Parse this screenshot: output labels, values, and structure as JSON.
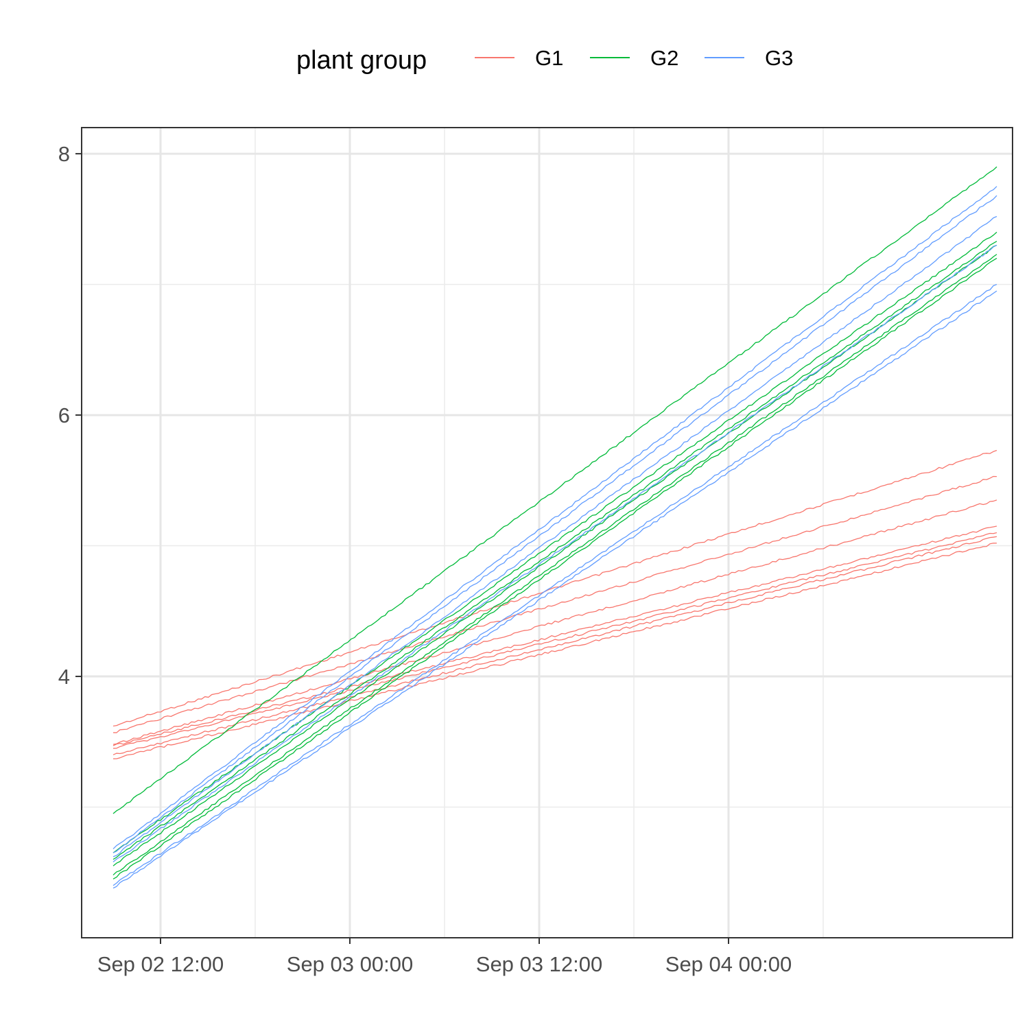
{
  "chart_data": {
    "type": "line",
    "title": "",
    "xlabel": "",
    "ylabel": "",
    "x_type": "datetime",
    "xlim": [
      "2022-09-02 07:00",
      "2022-09-04 18:00"
    ],
    "ylim": [
      2.0,
      8.2
    ],
    "x_ticks": [
      {
        "value": "2022-09-02 12:00",
        "label": "Sep 02 12:00"
      },
      {
        "value": "2022-09-03 00:00",
        "label": "Sep 03 00:00"
      },
      {
        "value": "2022-09-03 12:00",
        "label": "Sep 03 12:00"
      },
      {
        "value": "2022-09-04 00:00",
        "label": "Sep 04 00:00"
      }
    ],
    "x_minor_ticks": [
      "2022-09-02 18:00",
      "2022-09-03 06:00",
      "2022-09-03 18:00",
      "2022-09-04 06:00"
    ],
    "y_ticks": [
      {
        "value": 4,
        "label": "4"
      },
      {
        "value": 6,
        "label": "6"
      },
      {
        "value": 8,
        "label": "8"
      }
    ],
    "y_minor_ticks": [
      3,
      5,
      7
    ],
    "grid": true,
    "legend": {
      "title": "plant group",
      "position": "top",
      "entries": [
        {
          "label": "G1",
          "color": "#F8766D"
        },
        {
          "label": "G2",
          "color": "#00BA38"
        },
        {
          "label": "G3",
          "color": "#619CFF"
        }
      ]
    },
    "series": [
      {
        "group": "G1",
        "color": "#F8766D",
        "x": [
          "2022-09-02 09:00",
          "2022-09-04 17:00"
        ],
        "y": [
          3.62,
          5.73
        ]
      },
      {
        "group": "G1",
        "color": "#F8766D",
        "x": [
          "2022-09-02 09:00",
          "2022-09-04 17:00"
        ],
        "y": [
          3.57,
          5.53
        ]
      },
      {
        "group": "G1",
        "color": "#F8766D",
        "x": [
          "2022-09-02 09:00",
          "2022-09-04 17:00"
        ],
        "y": [
          3.48,
          5.35
        ]
      },
      {
        "group": "G1",
        "color": "#F8766D",
        "x": [
          "2022-09-02 09:00",
          "2022-09-04 17:00"
        ],
        "y": [
          3.47,
          5.15
        ]
      },
      {
        "group": "G1",
        "color": "#F8766D",
        "x": [
          "2022-09-02 09:00",
          "2022-09-04 17:00"
        ],
        "y": [
          3.45,
          5.1
        ]
      },
      {
        "group": "G1",
        "color": "#F8766D",
        "x": [
          "2022-09-02 09:00",
          "2022-09-04 17:00"
        ],
        "y": [
          3.4,
          5.07
        ]
      },
      {
        "group": "G1",
        "color": "#F8766D",
        "x": [
          "2022-09-02 09:00",
          "2022-09-04 17:00"
        ],
        "y": [
          3.37,
          5.02
        ]
      },
      {
        "group": "G2",
        "color": "#00BA38",
        "x": [
          "2022-09-02 09:00",
          "2022-09-04 17:00"
        ],
        "y": [
          2.95,
          7.9
        ]
      },
      {
        "group": "G2",
        "color": "#00BA38",
        "x": [
          "2022-09-02 09:00",
          "2022-09-04 17:00"
        ],
        "y": [
          2.65,
          7.4
        ]
      },
      {
        "group": "G2",
        "color": "#00BA38",
        "x": [
          "2022-09-02 09:00",
          "2022-09-04 17:00"
        ],
        "y": [
          2.6,
          7.33
        ]
      },
      {
        "group": "G2",
        "color": "#00BA38",
        "x": [
          "2022-09-02 09:00",
          "2022-09-04 17:00"
        ],
        "y": [
          2.55,
          7.3
        ]
      },
      {
        "group": "G2",
        "color": "#00BA38",
        "x": [
          "2022-09-02 09:00",
          "2022-09-04 17:00"
        ],
        "y": [
          2.48,
          7.23
        ]
      },
      {
        "group": "G2",
        "color": "#00BA38",
        "x": [
          "2022-09-02 09:00",
          "2022-09-04 17:00"
        ],
        "y": [
          2.45,
          7.2
        ]
      },
      {
        "group": "G3",
        "color": "#619CFF",
        "x": [
          "2022-09-02 09:00",
          "2022-09-04 17:00"
        ],
        "y": [
          2.68,
          7.75
        ]
      },
      {
        "group": "G3",
        "color": "#619CFF",
        "x": [
          "2022-09-02 09:00",
          "2022-09-04 17:00"
        ],
        "y": [
          2.65,
          7.68
        ]
      },
      {
        "group": "G3",
        "color": "#619CFF",
        "x": [
          "2022-09-02 09:00",
          "2022-09-04 17:00"
        ],
        "y": [
          2.62,
          7.52
        ]
      },
      {
        "group": "G3",
        "color": "#619CFF",
        "x": [
          "2022-09-02 09:00",
          "2022-09-04 17:00"
        ],
        "y": [
          2.58,
          7.3
        ]
      },
      {
        "group": "G3",
        "color": "#619CFF",
        "x": [
          "2022-09-02 09:00",
          "2022-09-04 17:00"
        ],
        "y": [
          2.4,
          7.0
        ]
      },
      {
        "group": "G3",
        "color": "#619CFF",
        "x": [
          "2022-09-02 09:00",
          "2022-09-04 17:00"
        ],
        "y": [
          2.38,
          6.95
        ]
      }
    ]
  }
}
